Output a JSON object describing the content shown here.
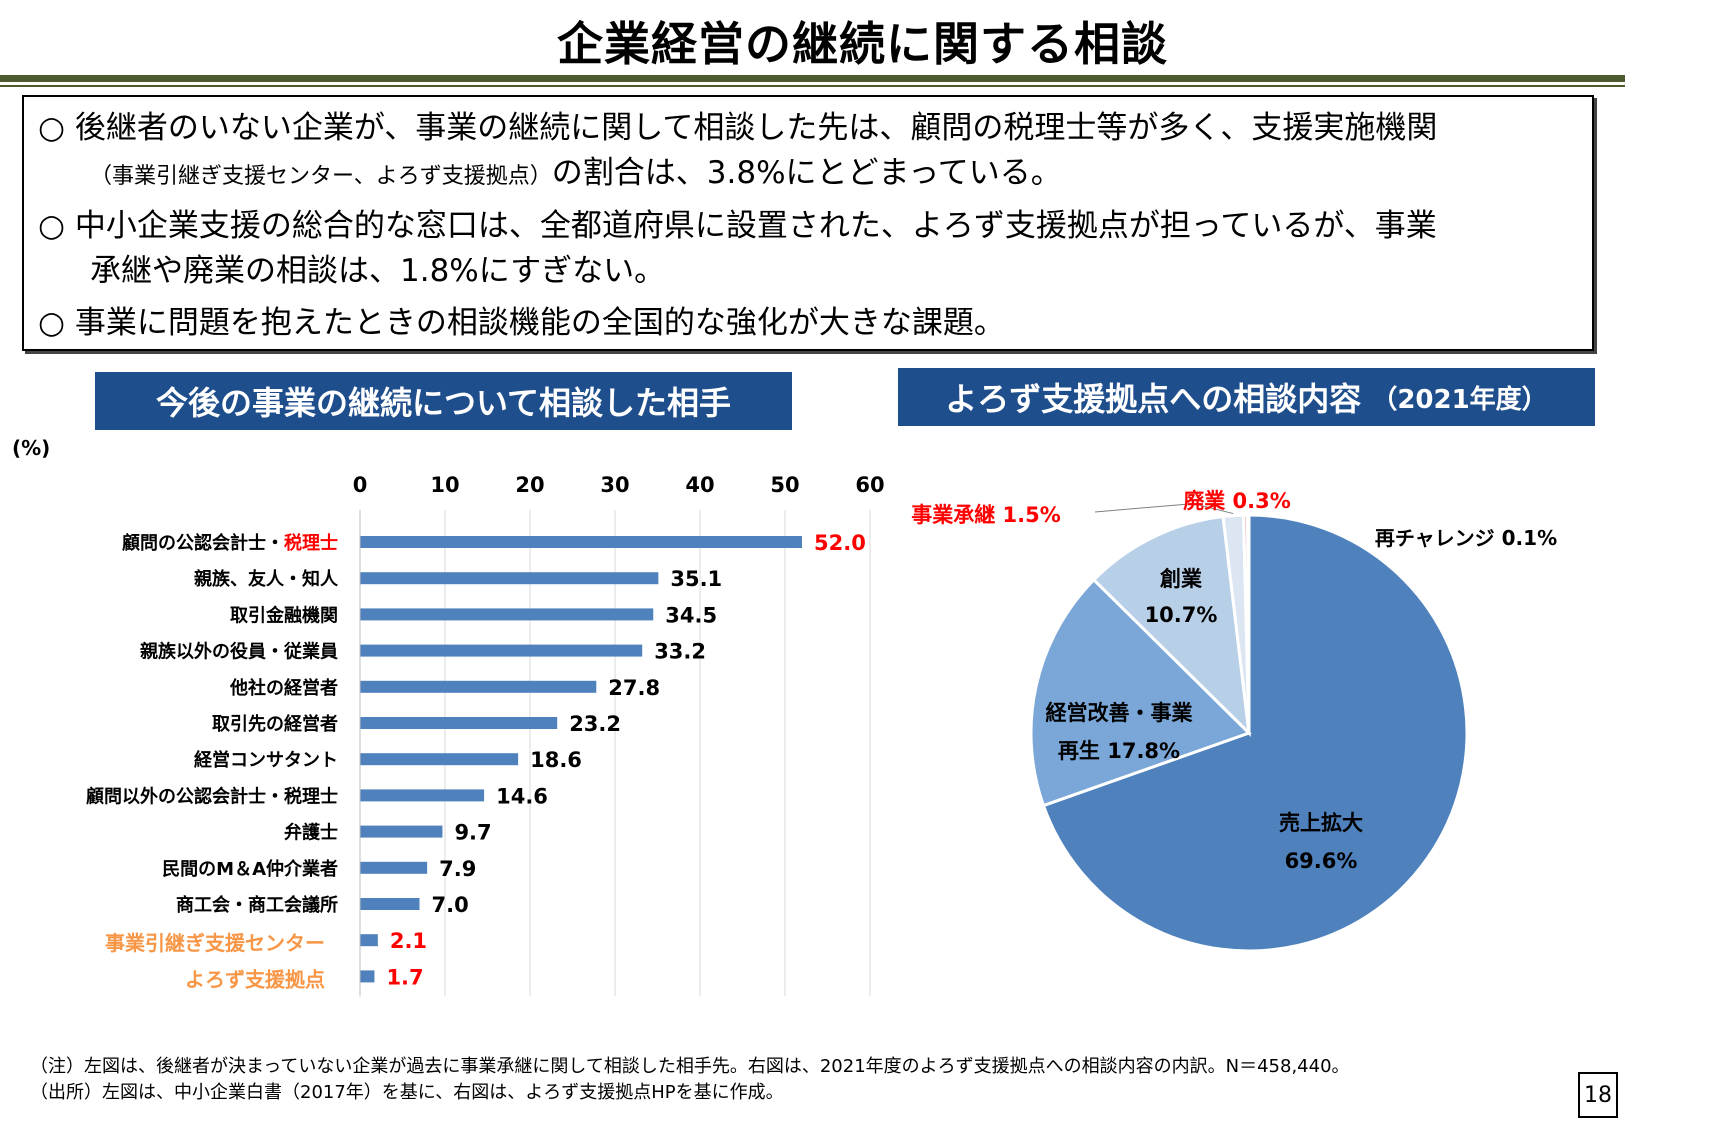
{
  "title": "企業経営の継続に関する相談",
  "summary": {
    "l1": "○ 後継者のいない企業が、事業の継続に関して相談した先は、顧問の税理士等が多く、支援実施機関",
    "l2_small": "（事業引継ぎ支援センター、よろず支援拠点）",
    "l2_rest": "の割合は、3.8%にとどまっている。",
    "l3": "○ 中小企業支援の総合的な窓口は、全都道府県に設置された、よろず支援拠点が担っているが、事業",
    "l4": "承継や廃業の相談は、1.8%にすぎない。",
    "l5": "○ 事業に問題を抱えたときの相談機能の全国的な強化が大きな課題。"
  },
  "left_panel": {
    "heading": "今後の事業の継続について相談した相手",
    "unit": "(%)"
  },
  "right_panel": {
    "heading": "よろず支援拠点への相談内容",
    "heading_sub": "（2021年度）"
  },
  "colors": {
    "bar": "#4f81bd",
    "red": "#ff0000",
    "orange": "#f79646",
    "navy": "#1f4e8c"
  },
  "chart_data": [
    {
      "type": "bar",
      "orientation": "horizontal",
      "xlim": [
        0,
        60
      ],
      "xticks": [
        0,
        10,
        20,
        30,
        40,
        50,
        60
      ],
      "categories": [
        {
          "name": "顧問の公認会計士・",
          "name2": "税理士",
          "value": 52.0,
          "label": "52.0",
          "style": "red-value"
        },
        {
          "name": "親族、友人・知人",
          "value": 35.1,
          "label": "35.1"
        },
        {
          "name": "取引金融機関",
          "value": 34.5,
          "label": "34.5"
        },
        {
          "name": "親族以外の役員・従業員",
          "value": 33.2,
          "label": "33.2"
        },
        {
          "name": "他社の経営者",
          "value": 27.8,
          "label": "27.8"
        },
        {
          "name": "取引先の経営者",
          "value": 23.2,
          "label": "23.2"
        },
        {
          "name": "経営コンサタント",
          "value": 18.6,
          "label": "18.6"
        },
        {
          "name": "顧問以外の公認会計士・税理士",
          "value": 14.6,
          "label": "14.6"
        },
        {
          "name": "弁護士",
          "value": 9.7,
          "label": "9.7"
        },
        {
          "name": "民間のM＆A仲介業者",
          "value": 7.9,
          "label": "7.9"
        },
        {
          "name": "商工会・商工会議所",
          "value": 7.0,
          "label": "7.0"
        },
        {
          "name": "事業引継ぎ支援センター",
          "value": 2.1,
          "label": "2.1",
          "style": "highlight"
        },
        {
          "name": "よろず支援拠点",
          "value": 1.7,
          "label": "1.7",
          "style": "highlight"
        }
      ]
    },
    {
      "type": "pie",
      "slices": [
        {
          "name": "売上拡大",
          "value": 69.6,
          "label": "69.6%",
          "color": "#4f81bd"
        },
        {
          "name": "経営改善・事業再生",
          "line1": "経営改善・事業",
          "line2": "再生 17.8%",
          "value": 17.8,
          "color": "#7aa7d8"
        },
        {
          "name": "創業",
          "value": 10.7,
          "label": "10.7%",
          "color": "#b8cfe8"
        },
        {
          "name": "事業承継",
          "value": 1.5,
          "label": "事業承継 1.5%",
          "color": "#dce6f2"
        },
        {
          "name": "廃業",
          "value": 0.3,
          "label": "廃業 0.3%",
          "color": "#f2c4c4"
        },
        {
          "name": "再チャレンジ",
          "value": 0.1,
          "label": "再チャレンジ 0.1%",
          "color": "#ff6666"
        }
      ]
    }
  ],
  "notes": {
    "n1": "（注）左図は、後継者が決まっていない企業が過去に事業承継に関して相談した相手先。右図は、2021年度のよろず支援拠点への相談内容の内訳。N＝458,440。",
    "n2": "（出所）左図は、中小企業白書（2017年）を基に、右図は、よろず支援拠点HPを基に作成。"
  },
  "page_number": "18"
}
